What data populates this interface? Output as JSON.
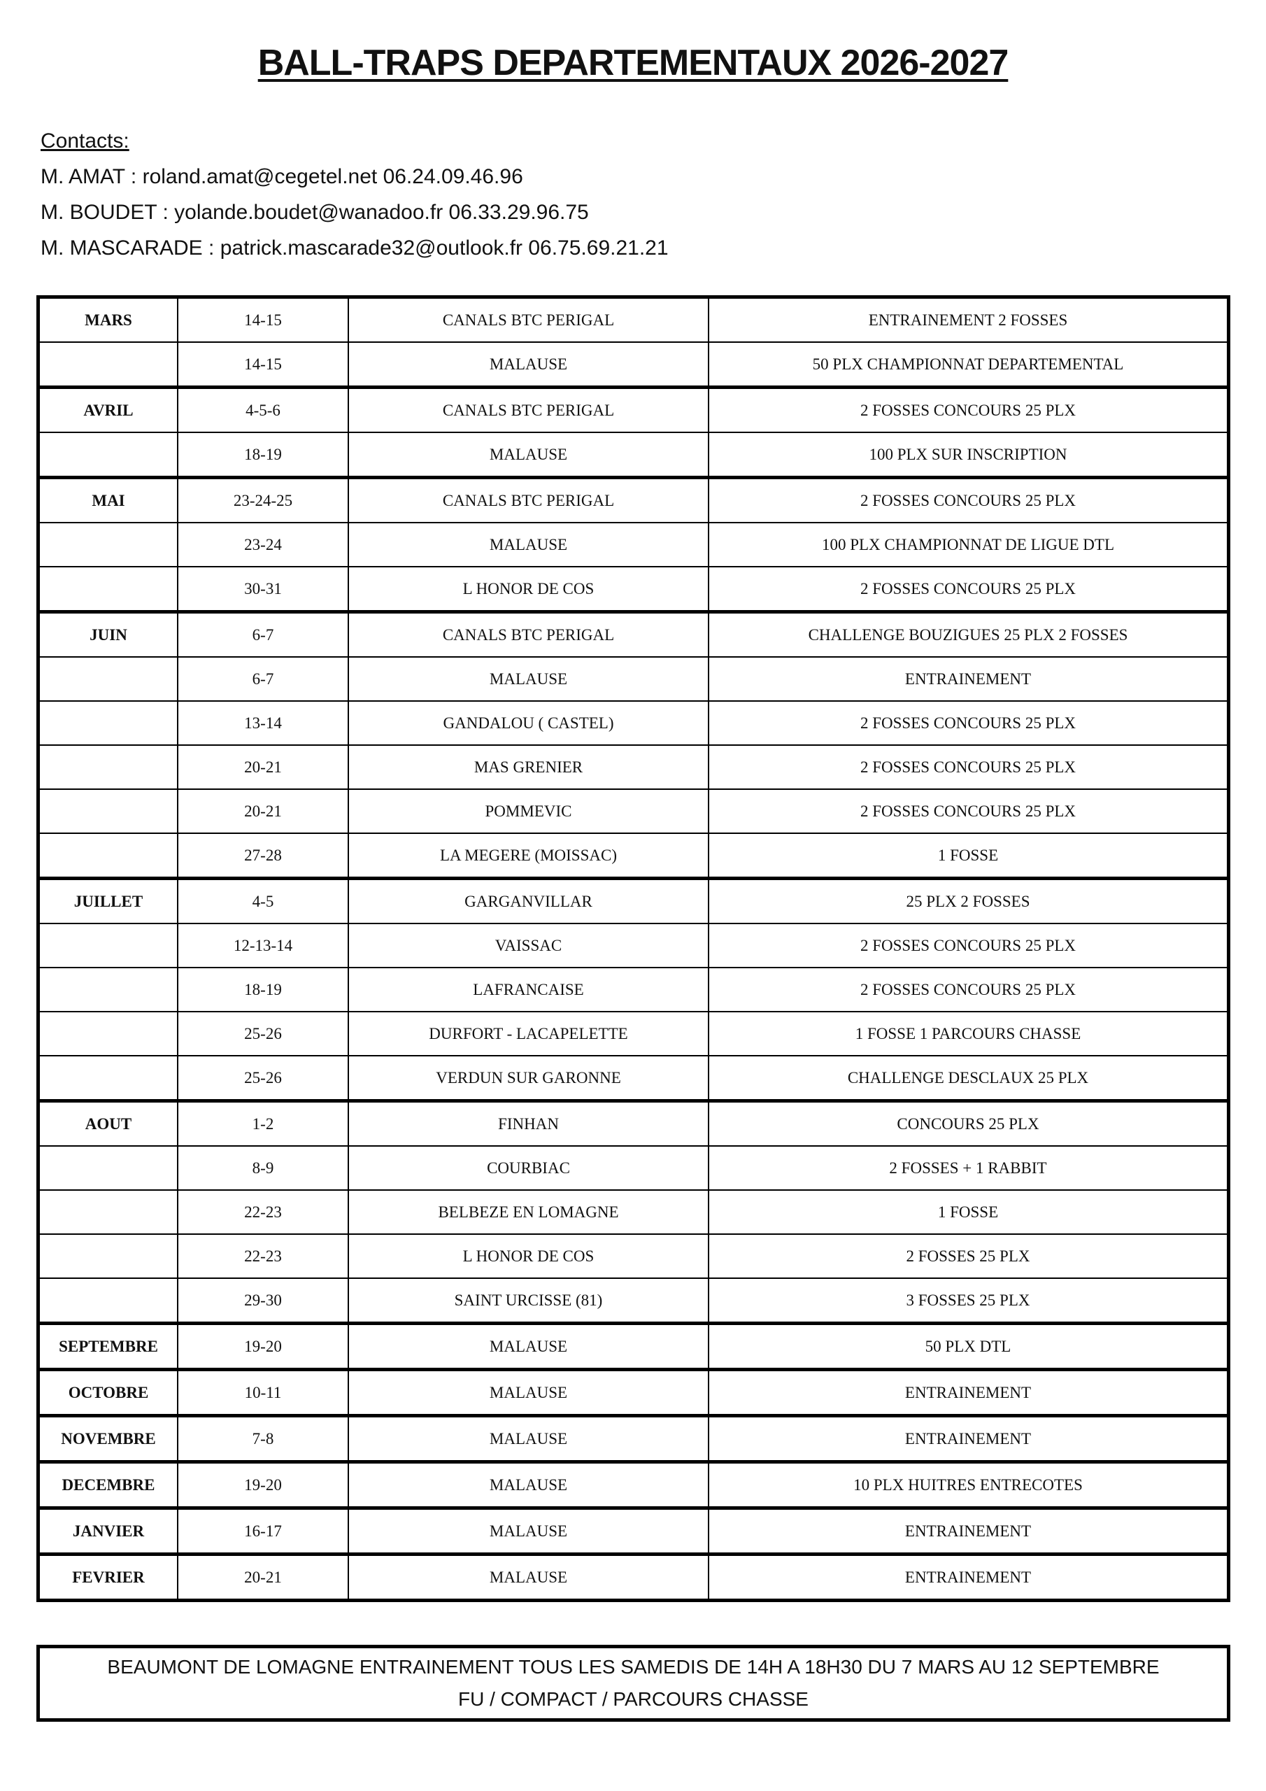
{
  "title": "BALL-TRAPS DEPARTEMENTAUX 2026-2027",
  "contacts": {
    "heading": "Contacts:",
    "lines": [
      "M. AMAT : roland.amat@cegetel.net  06.24.09.46.96",
      "M. BOUDET : yolande.boudet@wanadoo.fr  06.33.29.96.75",
      "M. MASCARADE : patrick.mascarade32@outlook.fr  06.75.69.21.21"
    ]
  },
  "rows": [
    [
      "MARS",
      "14-15",
      "CANALS BTC PERIGAL",
      "ENTRAINEMENT 2 FOSSES"
    ],
    [
      "",
      "14-15",
      "MALAUSE",
      "50 PLX CHAMPIONNAT DEPARTEMENTAL"
    ],
    [
      "AVRIL",
      "4-5-6",
      "CANALS BTC PERIGAL",
      "2 FOSSES CONCOURS 25 PLX"
    ],
    [
      "",
      "18-19",
      "MALAUSE",
      "100 PLX SUR INSCRIPTION"
    ],
    [
      "MAI",
      "23-24-25",
      "CANALS BTC PERIGAL",
      "2 FOSSES CONCOURS 25 PLX"
    ],
    [
      "",
      "23-24",
      "MALAUSE",
      "100 PLX CHAMPIONNAT DE LIGUE DTL"
    ],
    [
      "",
      "30-31",
      "L HONOR DE COS",
      "2 FOSSES CONCOURS 25 PLX"
    ],
    [
      "JUIN",
      "6-7",
      "CANALS BTC PERIGAL",
      "CHALLENGE BOUZIGUES 25 PLX 2 FOSSES"
    ],
    [
      "",
      "6-7",
      "MALAUSE",
      "ENTRAINEMENT"
    ],
    [
      "",
      "13-14",
      "GANDALOU ( CASTEL)",
      "2 FOSSES CONCOURS 25 PLX"
    ],
    [
      "",
      "20-21",
      "MAS GRENIER",
      "2 FOSSES CONCOURS 25 PLX"
    ],
    [
      "",
      "20-21",
      "POMMEVIC",
      "2 FOSSES CONCOURS 25 PLX"
    ],
    [
      "",
      "27-28",
      "LA MEGERE (MOISSAC)",
      "1 FOSSE"
    ],
    [
      "JUILLET",
      "4-5",
      "GARGANVILLAR",
      "25 PLX 2 FOSSES"
    ],
    [
      "",
      "12-13-14",
      "VAISSAC",
      "2 FOSSES CONCOURS 25 PLX"
    ],
    [
      "",
      "18-19",
      "LAFRANCAISE",
      "2 FOSSES CONCOURS 25 PLX"
    ],
    [
      "",
      "25-26",
      "DURFORT - LACAPELETTE",
      "1 FOSSE 1 PARCOURS CHASSE"
    ],
    [
      "",
      "25-26",
      "VERDUN SUR GARONNE",
      "CHALLENGE DESCLAUX 25 PLX"
    ],
    [
      "AOUT",
      "1-2",
      "FINHAN",
      "CONCOURS 25 PLX"
    ],
    [
      "",
      "8-9",
      "COURBIAC",
      "2 FOSSES + 1 RABBIT"
    ],
    [
      "",
      "22-23",
      "BELBEZE EN LOMAGNE",
      "1 FOSSE"
    ],
    [
      "",
      "22-23",
      "L HONOR DE COS",
      "2 FOSSES  25 PLX"
    ],
    [
      "",
      "29-30",
      "SAINT URCISSE (81)",
      "3 FOSSES  25 PLX"
    ],
    [
      "SEPTEMBRE",
      "19-20",
      "MALAUSE",
      "50 PLX DTL"
    ],
    [
      "OCTOBRE",
      "10-11",
      "MALAUSE",
      "ENTRAINEMENT"
    ],
    [
      "NOVEMBRE",
      "7-8",
      "MALAUSE",
      "ENTRAINEMENT"
    ],
    [
      "DECEMBRE",
      "19-20",
      "MALAUSE",
      "10 PLX HUITRES ENTRECOTES"
    ],
    [
      "JANVIER",
      "16-17",
      "MALAUSE",
      "ENTRAINEMENT"
    ],
    [
      "FEVRIER",
      "20-21",
      "MALAUSE",
      "ENTRAINEMENT"
    ]
  ],
  "footer": {
    "line1": "BEAUMONT DE LOMAGNE ENTRAINEMENT TOUS LES SAMEDIS DE 14H A 18H30 DU 7 MARS AU 12 SEPTEMBRE",
    "line2": "FU / COMPACT / PARCOURS CHASSE"
  }
}
